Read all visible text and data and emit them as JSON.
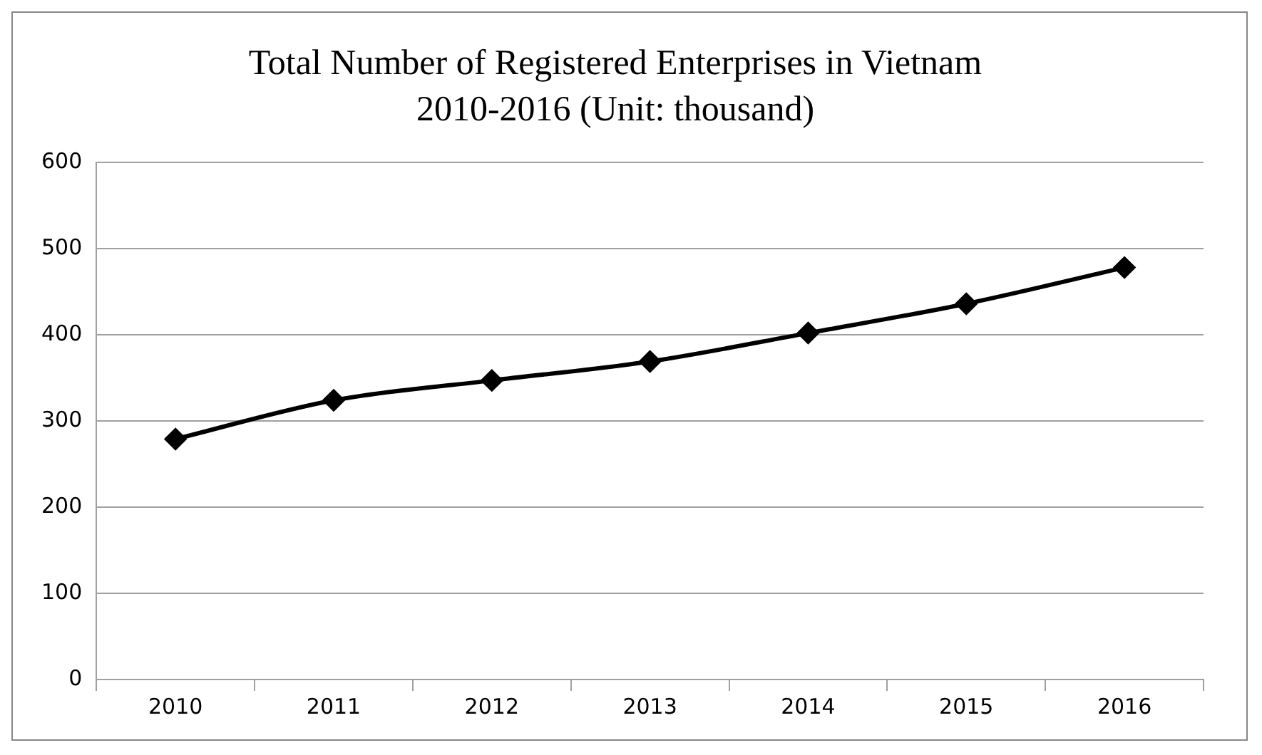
{
  "chart_data": {
    "type": "line",
    "title": "Total Number of Registered Enterprises in Vietnam\n2010-2016 (Unit: thousand)",
    "categories": [
      "2010",
      "2011",
      "2012",
      "2013",
      "2014",
      "2015",
      "2016"
    ],
    "series": [
      {
        "color": "#000000",
        "values": [
          279,
          324,
          347,
          369,
          402,
          436,
          478
        ]
      }
    ],
    "ylim": [
      0,
      600
    ],
    "yticks": [
      0,
      100,
      200,
      300,
      400,
      500,
      600
    ],
    "grid": "y",
    "legend": false,
    "marker": "diamond",
    "line_style": "solid"
  }
}
